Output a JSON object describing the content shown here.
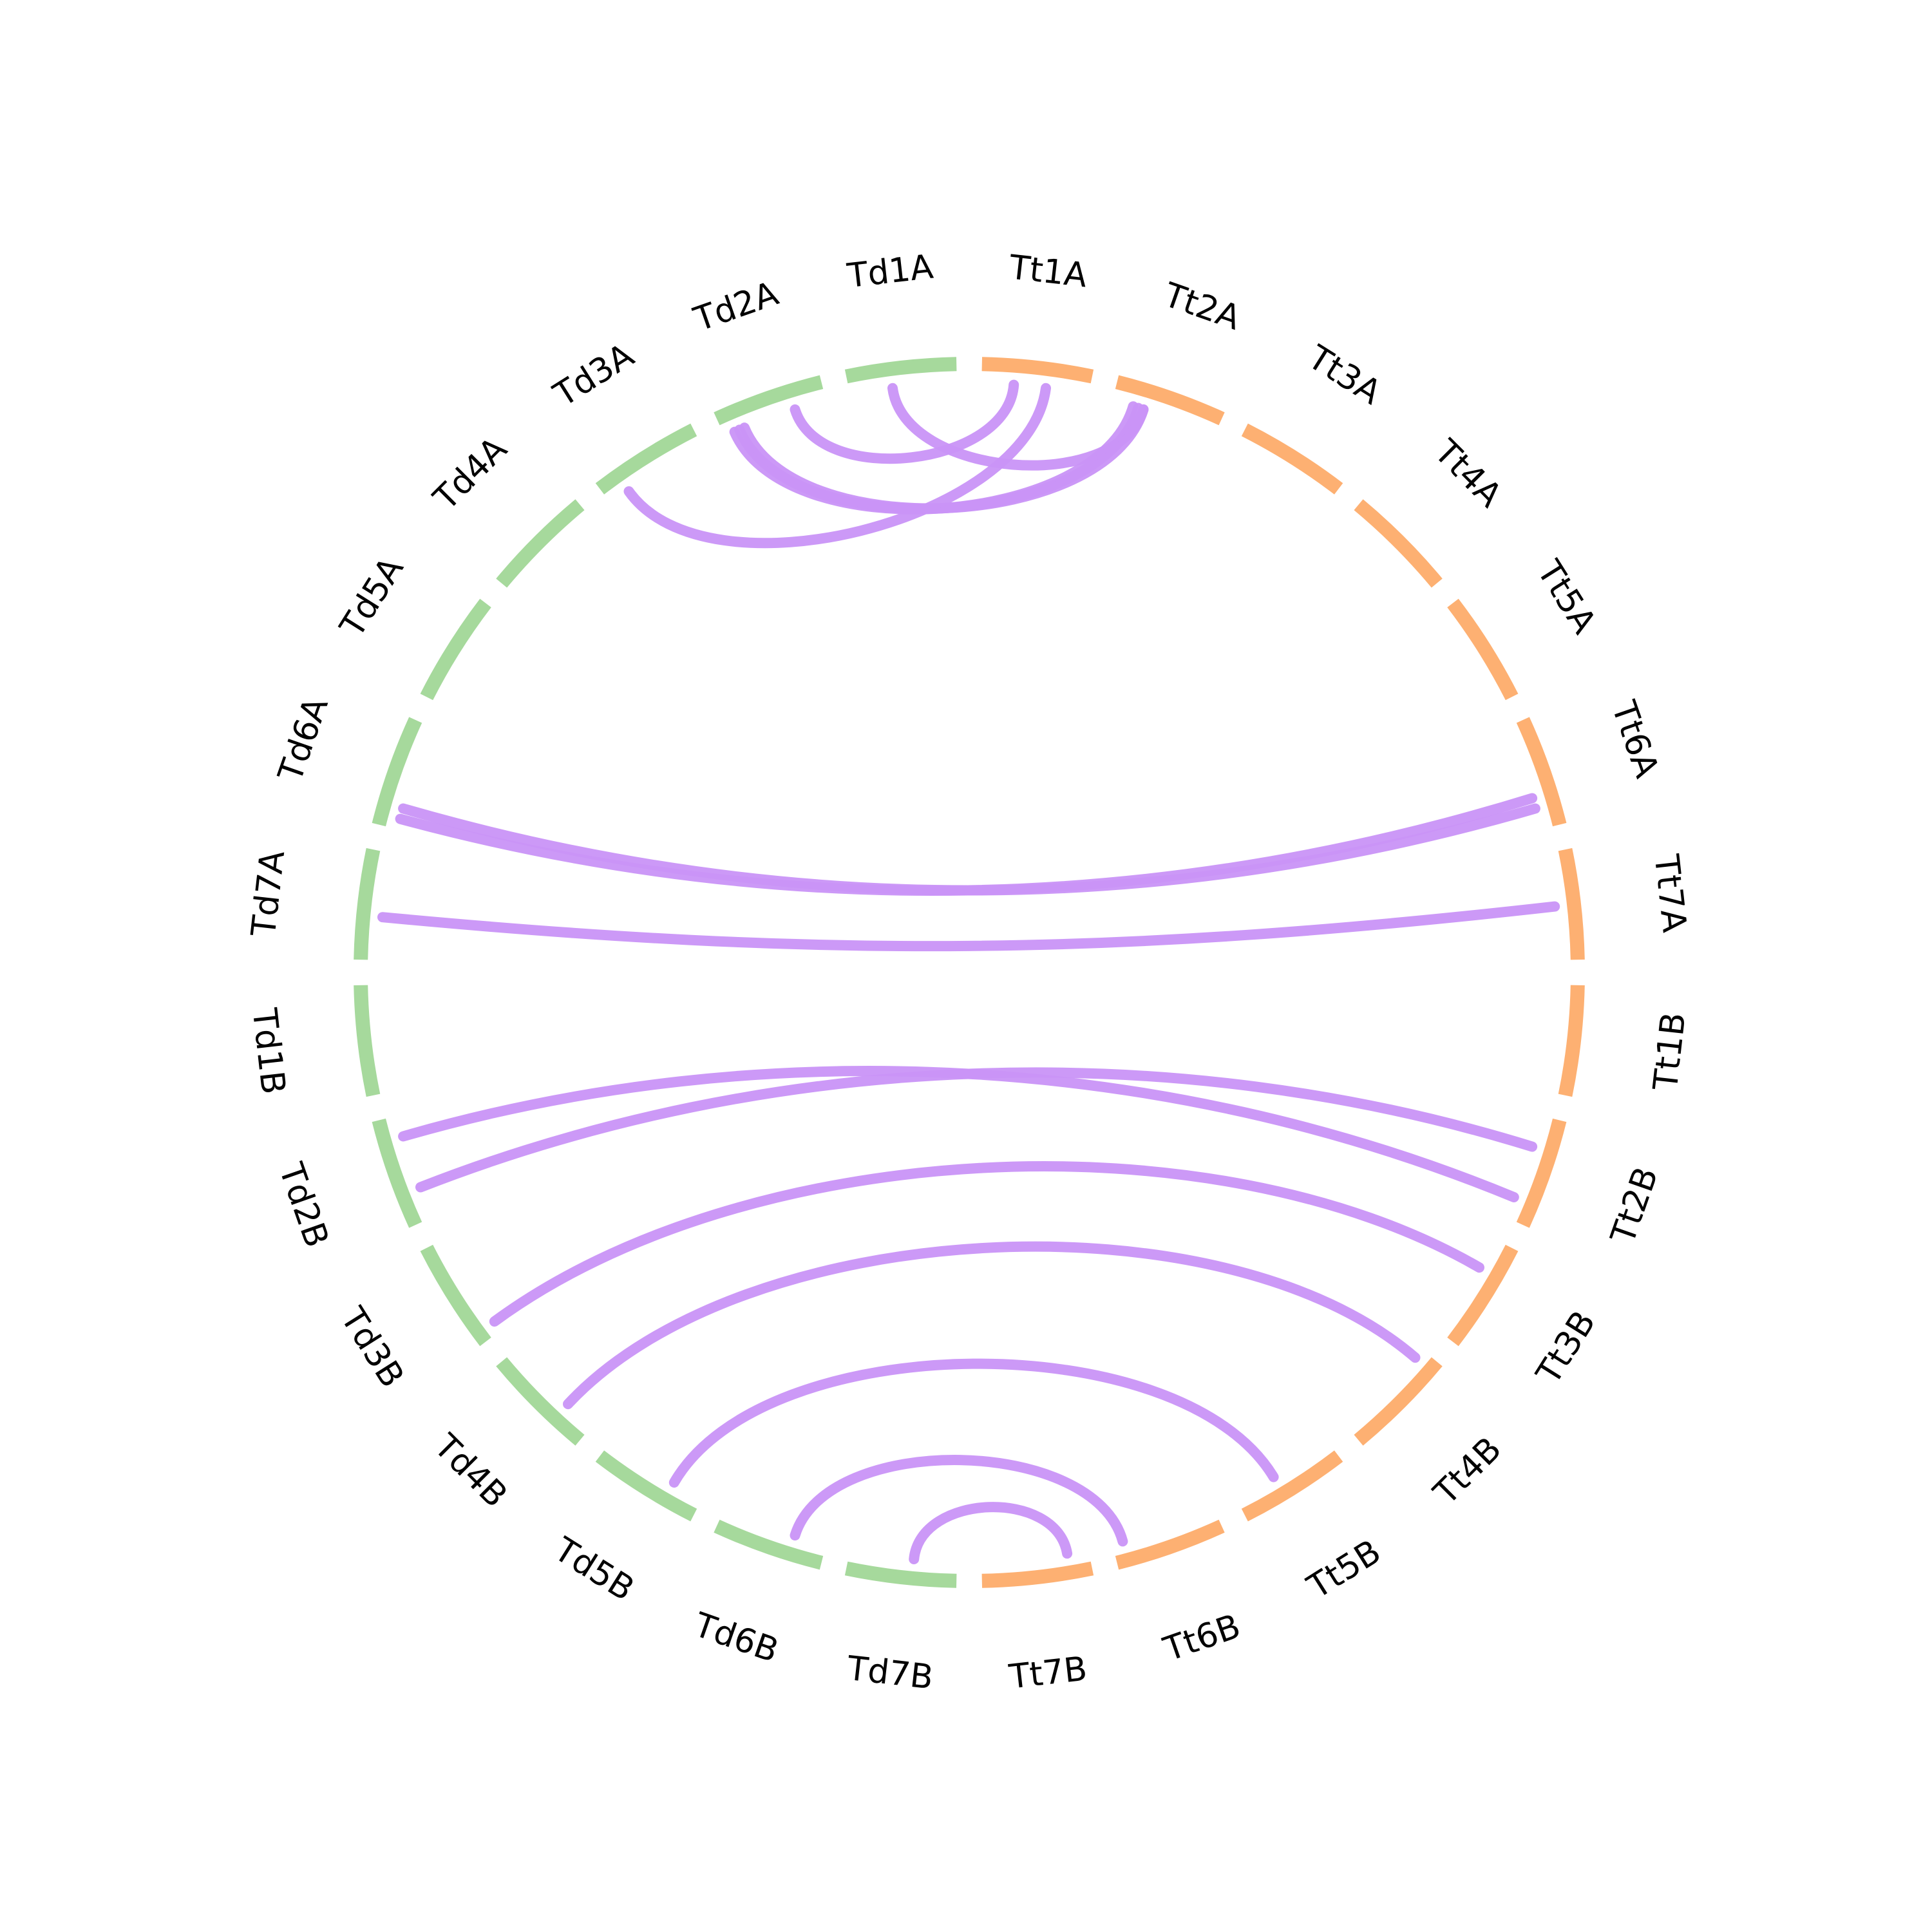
{
  "chart_data": {
    "type": "chord",
    "colors": {
      "Td": "#a6d99c",
      "Tt": "#fdb072",
      "link": "#c994f7"
    },
    "segments": [
      {
        "name": "Tt1A",
        "group": "Tt"
      },
      {
        "name": "Tt2A",
        "group": "Tt"
      },
      {
        "name": "Tt3A",
        "group": "Tt"
      },
      {
        "name": "Tt4A",
        "group": "Tt"
      },
      {
        "name": "Tt5A",
        "group": "Tt"
      },
      {
        "name": "Tt6A",
        "group": "Tt"
      },
      {
        "name": "Tt7A",
        "group": "Tt"
      },
      {
        "name": "Tt1B",
        "group": "Tt"
      },
      {
        "name": "Tt2B",
        "group": "Tt"
      },
      {
        "name": "Tt3B",
        "group": "Tt"
      },
      {
        "name": "Tt4B",
        "group": "Tt"
      },
      {
        "name": "Tt5B",
        "group": "Tt"
      },
      {
        "name": "Tt6B",
        "group": "Tt"
      },
      {
        "name": "Tt7B",
        "group": "Tt"
      },
      {
        "name": "Td7B",
        "group": "Td"
      },
      {
        "name": "Td6B",
        "group": "Td"
      },
      {
        "name": "Td5B",
        "group": "Td"
      },
      {
        "name": "Td4B",
        "group": "Td"
      },
      {
        "name": "Td3B",
        "group": "Td"
      },
      {
        "name": "Td2B",
        "group": "Td"
      },
      {
        "name": "Td1B",
        "group": "Td"
      },
      {
        "name": "Td7A",
        "group": "Td"
      },
      {
        "name": "Td6A",
        "group": "Td"
      },
      {
        "name": "Td5A",
        "group": "Td"
      },
      {
        "name": "Td4A",
        "group": "Td"
      },
      {
        "name": "Td3A",
        "group": "Td"
      },
      {
        "name": "Td2A",
        "group": "Td"
      },
      {
        "name": "Td1A",
        "group": "Td"
      }
    ],
    "links": [
      {
        "source": "Td1A",
        "target": "Tt2A",
        "s": 0.4,
        "t": 0.3
      },
      {
        "source": "Td2A",
        "target": "Tt1A",
        "s": 0.7,
        "t": 0.3
      },
      {
        "source": "Td2A",
        "target": "Tt2A",
        "s": 0.1,
        "t": 0.2
      },
      {
        "source": "Td2A",
        "target": "Tt2A",
        "s": 0.15,
        "t": 0.25
      },
      {
        "source": "Td2A",
        "target": "Tt2A",
        "s": 0.2,
        "t": 0.3
      },
      {
        "source": "Td3A",
        "target": "Tt1A",
        "s": 0.2,
        "t": 0.6
      },
      {
        "source": "Td6A",
        "target": "Tt6A",
        "s": 0.1,
        "t": 0.7
      },
      {
        "source": "Td6A",
        "target": "Tt6A",
        "s": 0.2,
        "t": 0.8
      },
      {
        "source": "Td7A",
        "target": "Tt7A",
        "s": 0.4,
        "t": 0.5
      },
      {
        "source": "Td2B",
        "target": "Tt2B",
        "s": 0.3,
        "t": 0.3
      },
      {
        "source": "Td2B",
        "target": "Tt2B",
        "s": 0.8,
        "t": 0.8
      },
      {
        "source": "Td3B",
        "target": "Tt3B",
        "s": 0.1,
        "t": 0.3
      },
      {
        "source": "Td4B",
        "target": "Tt4B",
        "s": 0.3,
        "t": 0.1
      },
      {
        "source": "Td5B",
        "target": "Tt5B",
        "s": 0.3,
        "t": 0.6
      },
      {
        "source": "Td6B",
        "target": "Tt6B",
        "s": 0.3,
        "t": 0.9
      },
      {
        "source": "Td7B",
        "target": "Tt7B",
        "s": 0.4,
        "t": 0.2
      }
    ]
  }
}
